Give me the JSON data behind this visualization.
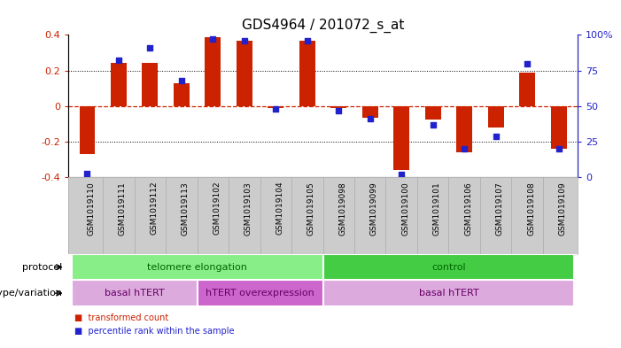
{
  "title": "GDS4964 / 201072_s_at",
  "samples": [
    "GSM1019110",
    "GSM1019111",
    "GSM1019112",
    "GSM1019113",
    "GSM1019102",
    "GSM1019103",
    "GSM1019104",
    "GSM1019105",
    "GSM1019098",
    "GSM1019099",
    "GSM1019100",
    "GSM1019101",
    "GSM1019106",
    "GSM1019107",
    "GSM1019108",
    "GSM1019109"
  ],
  "bar_values": [
    -0.27,
    0.245,
    0.245,
    0.13,
    0.385,
    0.365,
    -0.01,
    0.365,
    -0.01,
    -0.065,
    -0.36,
    -0.075,
    -0.26,
    -0.12,
    0.19,
    -0.24
  ],
  "dot_values": [
    3,
    82,
    91,
    68,
    97,
    96,
    48,
    96,
    47,
    41,
    2,
    37,
    20,
    29,
    80,
    20
  ],
  "ylim_left": [
    -0.4,
    0.4
  ],
  "ylim_right": [
    0,
    100
  ],
  "yticks_left": [
    -0.4,
    -0.2,
    0.0,
    0.2,
    0.4
  ],
  "ytick_labels_left": [
    "-0.4",
    "-0.2",
    "0",
    "0.2",
    "0.4"
  ],
  "yticks_right": [
    0,
    25,
    50,
    75,
    100
  ],
  "ytick_labels_right": [
    "0",
    "25",
    "50",
    "75",
    "100%"
  ],
  "bar_color": "#cc2200",
  "dot_color": "#2222cc",
  "zero_line_color": "#cc2200",
  "grid_color": "#000000",
  "protocol_groups": [
    {
      "label": "telomere elongation",
      "start": 0,
      "end": 7,
      "color": "#88ee88"
    },
    {
      "label": "control",
      "start": 8,
      "end": 15,
      "color": "#44cc44"
    }
  ],
  "genotype_groups": [
    {
      "label": "basal hTERT",
      "start": 0,
      "end": 3,
      "color": "#ddaadd"
    },
    {
      "label": "hTERT overexpression",
      "start": 4,
      "end": 7,
      "color": "#cc66cc"
    },
    {
      "label": "basal hTERT",
      "start": 8,
      "end": 15,
      "color": "#ddaadd"
    }
  ],
  "legend_items": [
    {
      "label": "transformed count",
      "color": "#cc2200"
    },
    {
      "label": "percentile rank within the sample",
      "color": "#2222cc"
    }
  ],
  "left_ylabel_color": "#cc2200",
  "right_ylabel_color": "#2222cc",
  "bg_color": "#ffffff",
  "tick_label_area_color": "#cccccc",
  "title_fontsize": 11,
  "axis_fontsize": 8,
  "bar_width": 0.5,
  "label_fontsize": 6.5,
  "protocol_fontsize": 8,
  "genotype_fontsize": 8
}
